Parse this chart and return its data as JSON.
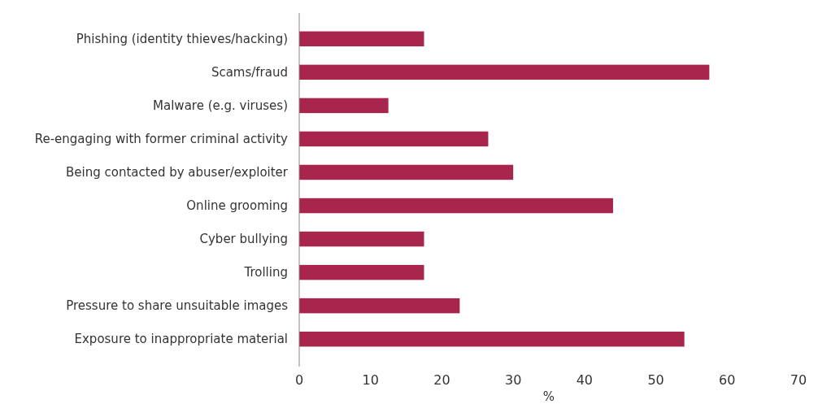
{
  "chart_data": {
    "type": "bar",
    "orientation": "horizontal",
    "xlabel": "%",
    "categories": [
      "Phishing (identity thieves/hacking)",
      "Scams/fraud",
      "Malware (e.g. viruses)",
      "Re-engaging with former criminal activity",
      "Being contacted by abuser/exploiter",
      "Online grooming",
      "Cyber bullying",
      "Trolling",
      "Pressure to share unsuitable images",
      "Exposure to inappropriate material"
    ],
    "values": [
      17.5,
      57.5,
      12.5,
      26.5,
      30,
      44,
      17.5,
      17.5,
      22.5,
      54
    ],
    "color": "#a8264d",
    "xlim": [
      0,
      70
    ],
    "xticks": [
      0,
      10,
      20,
      30,
      40,
      50,
      60,
      70
    ],
    "grid": false
  }
}
